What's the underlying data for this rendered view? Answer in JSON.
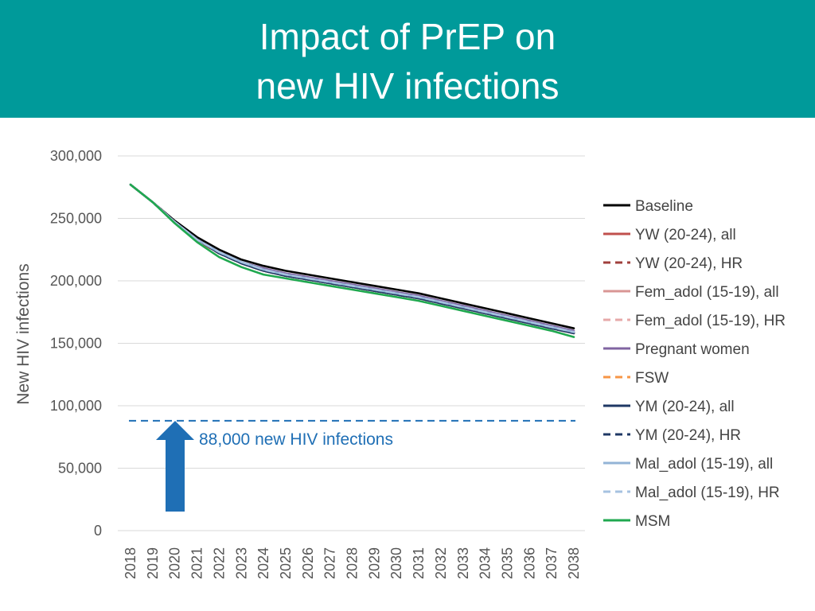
{
  "slide": {
    "title_line1": "Impact of PrEP on",
    "title_line2": "new HIV infections",
    "colors": {
      "header_bg": "#009a9a",
      "header_text": "#ffffff"
    }
  },
  "chart_data": {
    "type": "line",
    "title": "",
    "xlabel": "",
    "ylabel": "New HIV infections",
    "ylim": [
      0,
      300000
    ],
    "yticks": [
      0,
      50000,
      100000,
      150000,
      200000,
      250000,
      300000
    ],
    "ytick_labels": [
      "0",
      "50,000",
      "100,000",
      "150,000",
      "200,000",
      "250,000",
      "300,000"
    ],
    "grid": true,
    "legend_position": "right",
    "x": [
      "2018",
      "2019",
      "2020",
      "2021",
      "2022",
      "2023",
      "2024",
      "2025",
      "2026",
      "2027",
      "2028",
      "2029",
      "2030",
      "2031",
      "2032",
      "2033",
      "2034",
      "2035",
      "2036",
      "2037",
      "2038"
    ],
    "series": [
      {
        "name": "Baseline",
        "color": "#000000",
        "dash": "solid",
        "values": [
          277000,
          263000,
          248000,
          235000,
          225000,
          217000,
          212000,
          208000,
          205000,
          202000,
          199000,
          196000,
          193000,
          190000,
          186000,
          182000,
          178000,
          174000,
          170000,
          166000,
          162000
        ]
      },
      {
        "name": "YW (20-24), all",
        "color": "#c0504d",
        "dash": "solid",
        "values": [
          277000,
          263000,
          247000,
          233000,
          222000,
          214000,
          208000,
          204000,
          201000,
          198000,
          195000,
          192000,
          189000,
          186000,
          182000,
          178000,
          174000,
          170000,
          166000,
          162000,
          158000
        ]
      },
      {
        "name": "YW (20-24), HR",
        "color": "#a0403d",
        "dash": "dashed",
        "values": [
          277000,
          263000,
          247000,
          233000,
          222000,
          214000,
          208000,
          204000,
          201000,
          198000,
          195000,
          192000,
          189000,
          186000,
          182000,
          178000,
          174000,
          170000,
          166000,
          162000,
          158000
        ]
      },
      {
        "name": "Fem_adol (15-19), all",
        "color": "#d99694",
        "dash": "solid",
        "values": [
          277000,
          263000,
          247000,
          233000,
          223000,
          215000,
          209000,
          205000,
          202000,
          199000,
          196000,
          193000,
          190000,
          187000,
          183000,
          179000,
          175000,
          171000,
          167000,
          163000,
          159000
        ]
      },
      {
        "name": "Fem_adol (15-19), HR",
        "color": "#e6a8a8",
        "dash": "dashed",
        "values": [
          277000,
          263000,
          247000,
          233000,
          223000,
          215000,
          209000,
          205000,
          202000,
          199000,
          196000,
          193000,
          190000,
          187000,
          183000,
          179000,
          175000,
          171000,
          167000,
          163000,
          159000
        ]
      },
      {
        "name": "Pregnant women",
        "color": "#8064a2",
        "dash": "solid",
        "values": [
          277000,
          263000,
          247000,
          233000,
          223000,
          215000,
          210000,
          206000,
          203000,
          200000,
          197000,
          194000,
          191000,
          188000,
          184000,
          180000,
          176000,
          172000,
          168000,
          164000,
          160000
        ]
      },
      {
        "name": "FSW",
        "color": "#f79646",
        "dash": "dashed",
        "values": [
          277000,
          263000,
          247000,
          232000,
          222000,
          214000,
          208000,
          204000,
          201000,
          198000,
          195000,
          192000,
          189000,
          186000,
          182000,
          178000,
          174000,
          170000,
          166000,
          162000,
          158000
        ]
      },
      {
        "name": "YM (20-24), all",
        "color": "#1f3864",
        "dash": "solid",
        "values": [
          277000,
          263000,
          247000,
          233000,
          222000,
          214000,
          208000,
          204000,
          201000,
          198000,
          195000,
          192000,
          189000,
          186000,
          182000,
          178000,
          174000,
          170000,
          166000,
          162000,
          158000
        ]
      },
      {
        "name": "YM (20-24), HR",
        "color": "#1f3864",
        "dash": "dashed",
        "values": [
          277000,
          263000,
          247000,
          233000,
          222000,
          214000,
          208000,
          204000,
          201000,
          198000,
          195000,
          192000,
          189000,
          186000,
          182000,
          178000,
          174000,
          170000,
          166000,
          162000,
          158000
        ]
      },
      {
        "name": "Mal_adol (15-19), all",
        "color": "#93b4d6",
        "dash": "solid",
        "values": [
          277000,
          263000,
          247000,
          233000,
          223000,
          215000,
          209000,
          205000,
          202000,
          199000,
          196000,
          193000,
          190000,
          187000,
          183000,
          179000,
          175000,
          171000,
          167000,
          163000,
          159000
        ]
      },
      {
        "name": "Mal_adol (15-19), HR",
        "color": "#a6c2e0",
        "dash": "dashed",
        "values": [
          277000,
          263000,
          247000,
          233000,
          223000,
          215000,
          209000,
          205000,
          202000,
          199000,
          196000,
          193000,
          190000,
          187000,
          183000,
          179000,
          175000,
          171000,
          167000,
          163000,
          159000
        ]
      },
      {
        "name": "MSM",
        "color": "#1fa84f",
        "dash": "solid",
        "values": [
          277000,
          263000,
          246000,
          231000,
          219000,
          211000,
          205000,
          202000,
          199000,
          196000,
          193000,
          190000,
          187000,
          184000,
          180000,
          176000,
          172000,
          168000,
          164000,
          160000,
          155000
        ]
      }
    ],
    "reference_line": {
      "value": 88000,
      "color": "#1f6fb5",
      "dash": "dashed"
    },
    "annotation": {
      "text": "88,000 new HIV infections",
      "color": "#1f6fb5",
      "arrow_color": "#1f6fb5"
    }
  }
}
